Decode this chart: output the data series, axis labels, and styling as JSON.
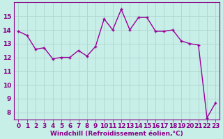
{
  "x": [
    0,
    1,
    2,
    3,
    4,
    5,
    6,
    7,
    8,
    9,
    10,
    11,
    12,
    13,
    14,
    15,
    16,
    17,
    18,
    19,
    20,
    21,
    22,
    23
  ],
  "y": [
    13.9,
    13.6,
    12.6,
    12.7,
    11.9,
    12.0,
    12.0,
    12.5,
    12.1,
    12.8,
    14.8,
    14.0,
    15.5,
    14.0,
    14.9,
    14.9,
    13.9,
    13.9,
    14.0,
    13.2,
    13.0,
    12.9,
    7.6,
    8.7
  ],
  "line_color": "#990099",
  "marker": "+",
  "marker_size": 3.5,
  "marker_linewidth": 1.0,
  "background_color": "#c8eee8",
  "grid_color": "#b0d8d2",
  "xlabel": "Windchill (Refroidissement éolien,°C)",
  "xlabel_fontsize": 6.5,
  "tick_fontsize": 6.5,
  "label_color": "#880088",
  "ylim": [
    7.5,
    16.0
  ],
  "xlim": [
    -0.5,
    23.5
  ],
  "yticks": [
    8,
    9,
    10,
    11,
    12,
    13,
    14,
    15
  ],
  "xticks": [
    0,
    1,
    2,
    3,
    4,
    5,
    6,
    7,
    8,
    9,
    10,
    11,
    12,
    13,
    14,
    15,
    16,
    17,
    18,
    19,
    20,
    21,
    22,
    23
  ],
  "linewidth": 1.0
}
